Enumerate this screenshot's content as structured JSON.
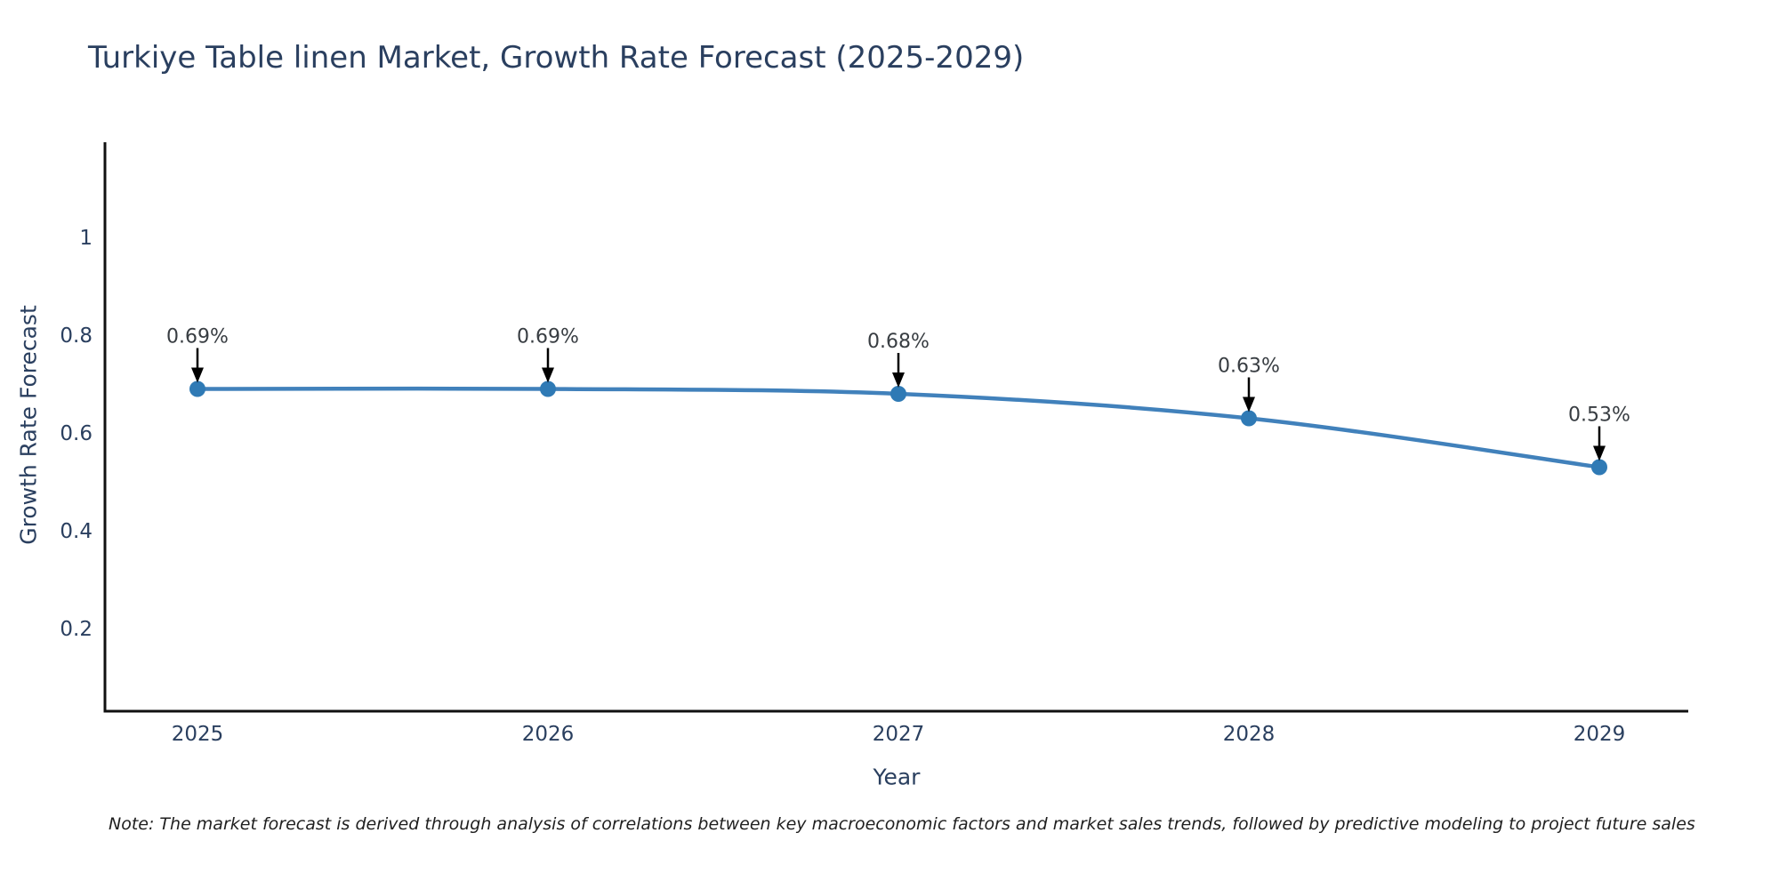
{
  "title": "Turkiye Table linen Market, Growth Rate Forecast (2025-2029)",
  "note": "Note: The market forecast is derived through analysis of correlations between key macroeconomic factors and market sales trends, followed by predictive modeling to project future sales",
  "chart_data": {
    "type": "line",
    "title": "Turkiye Table linen Market, Growth Rate Forecast (2025-2029)",
    "x": [
      "2025",
      "2026",
      "2027",
      "2028",
      "2029"
    ],
    "values": [
      0.69,
      0.69,
      0.68,
      0.63,
      0.53
    ],
    "point_labels": [
      "0.69%",
      "0.69%",
      "0.68%",
      "0.63%",
      "0.53%"
    ],
    "xlabel": "Year",
    "ylabel": "Growth Rate Forecast",
    "yticks": [
      0.2,
      0.4,
      0.6,
      0.8,
      1
    ],
    "ytick_labels": [
      "0.2",
      "0.4",
      "0.6",
      "0.8",
      "1"
    ],
    "ylim": [
      0.03,
      1.19
    ],
    "grid": false,
    "legend": "none",
    "annotation_style": "down-arrow-to-point",
    "colors": {
      "line": "#4181bb",
      "marker": "#2f7ab5",
      "axis": "#111111",
      "tick_text": "#2a3f5f",
      "annotation_text": "#383d42",
      "arrow": "#000000",
      "background": "#ffffff"
    }
  }
}
